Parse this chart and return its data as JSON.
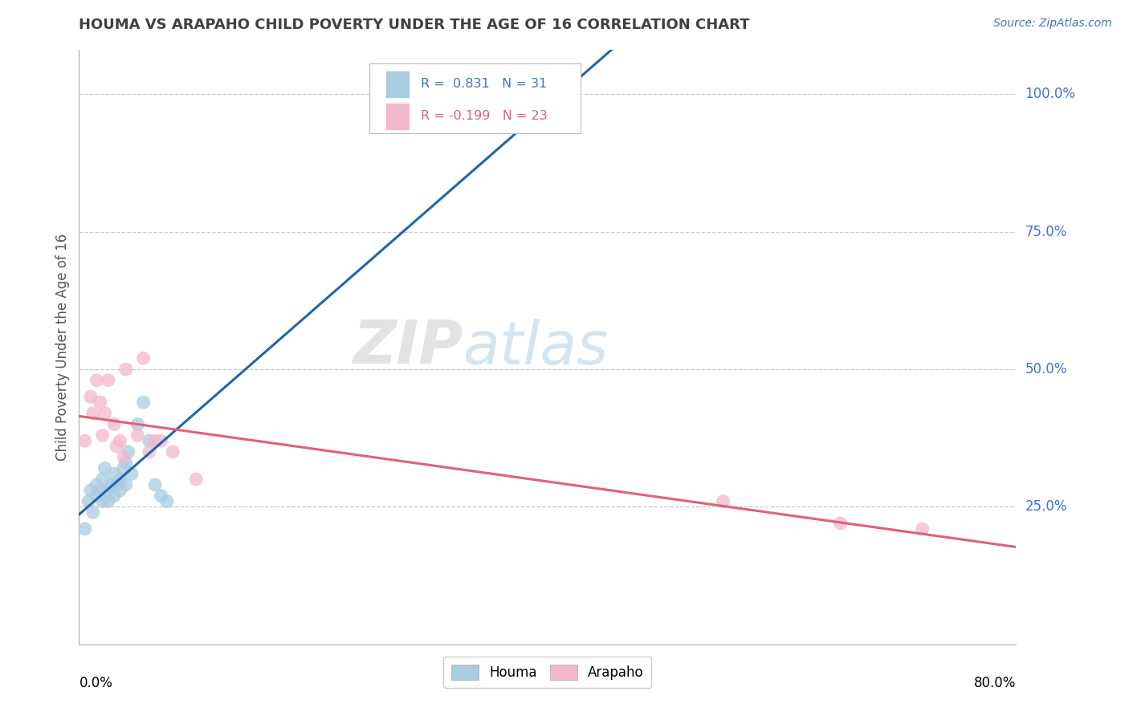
{
  "title": "HOUMA VS ARAPAHO CHILD POVERTY UNDER THE AGE OF 16 CORRELATION CHART",
  "source": "Source: ZipAtlas.com",
  "ylabel": "Child Poverty Under the Age of 16",
  "ytick_labels": [
    "100.0%",
    "75.0%",
    "50.0%",
    "25.0%"
  ],
  "ytick_values": [
    1.0,
    0.75,
    0.5,
    0.25
  ],
  "xlim": [
    0.0,
    0.8
  ],
  "ylim": [
    0.0,
    1.08
  ],
  "watermark_zip": "ZIP",
  "watermark_atlas": "atlas",
  "legend_houma": "Houma",
  "legend_arapaho": "Arapaho",
  "r_houma": "0.831",
  "n_houma": "31",
  "r_arapaho": "-0.199",
  "n_arapaho": "23",
  "blue_color": "#a8cce0",
  "pink_color": "#f4b8cc",
  "blue_line_color": "#2166ac",
  "pink_line_color": "#e0607a",
  "grid_color": "#c8c8c8",
  "title_color": "#404040",
  "right_label_color": "#4472c4",
  "source_color": "#4472c4",
  "houma_x": [
    0.005,
    0.008,
    0.01,
    0.012,
    0.015,
    0.015,
    0.018,
    0.02,
    0.02,
    0.022,
    0.025,
    0.025,
    0.028,
    0.03,
    0.03,
    0.032,
    0.035,
    0.035,
    0.038,
    0.04,
    0.04,
    0.042,
    0.045,
    0.05,
    0.055,
    0.06,
    0.065,
    0.07,
    0.075,
    0.38,
    0.4
  ],
  "houma_y": [
    0.21,
    0.26,
    0.28,
    0.24,
    0.29,
    0.27,
    0.28,
    0.3,
    0.26,
    0.32,
    0.26,
    0.28,
    0.29,
    0.31,
    0.27,
    0.29,
    0.3,
    0.28,
    0.32,
    0.33,
    0.29,
    0.35,
    0.31,
    0.4,
    0.44,
    0.37,
    0.29,
    0.27,
    0.26,
    0.94,
    1.0
  ],
  "arapaho_x": [
    0.005,
    0.01,
    0.012,
    0.015,
    0.018,
    0.02,
    0.022,
    0.025,
    0.03,
    0.032,
    0.035,
    0.038,
    0.04,
    0.05,
    0.055,
    0.06,
    0.065,
    0.07,
    0.08,
    0.1,
    0.55,
    0.65,
    0.72
  ],
  "arapaho_y": [
    0.37,
    0.45,
    0.42,
    0.48,
    0.44,
    0.38,
    0.42,
    0.48,
    0.4,
    0.36,
    0.37,
    0.34,
    0.5,
    0.38,
    0.52,
    0.35,
    0.37,
    0.37,
    0.35,
    0.3,
    0.26,
    0.22,
    0.21
  ]
}
